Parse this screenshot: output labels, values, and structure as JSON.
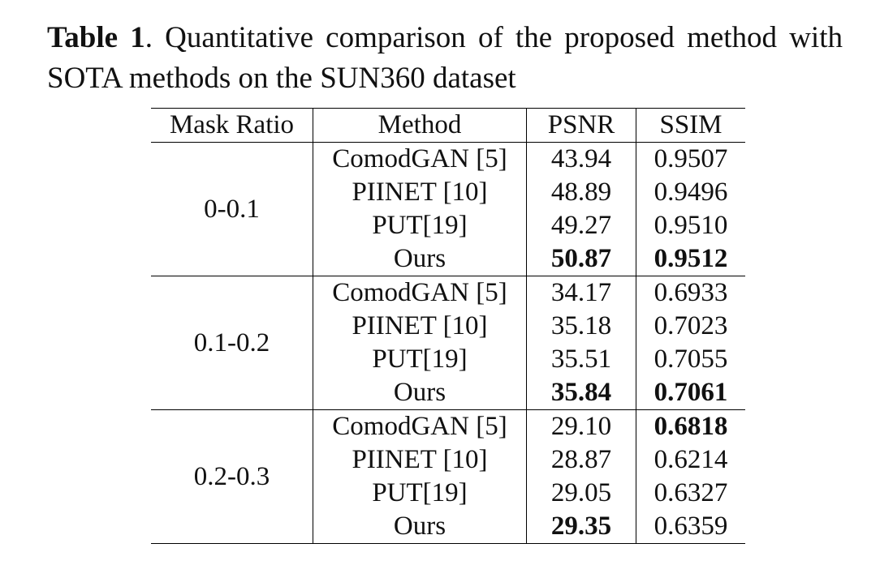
{
  "caption": {
    "label": "Table 1",
    "text": ".  Quantitative comparison of the proposed method with SOTA methods on the SUN360 dataset"
  },
  "table": {
    "headers": [
      "Mask Ratio",
      "Method",
      "PSNR",
      "SSIM"
    ],
    "groups": [
      {
        "mask_ratio": "0-0.1",
        "rows": [
          {
            "method": "ComodGAN [5]",
            "psnr": "43.94",
            "ssim": "0.9507",
            "psnr_bold": false,
            "ssim_bold": false
          },
          {
            "method": "PIINET [10]",
            "psnr": "48.89",
            "ssim": "0.9496",
            "psnr_bold": false,
            "ssim_bold": false
          },
          {
            "method": "PUT[19]",
            "psnr": "49.27",
            "ssim": "0.9510",
            "psnr_bold": false,
            "ssim_bold": false
          },
          {
            "method": "Ours",
            "psnr": "50.87",
            "ssim": "0.9512",
            "psnr_bold": true,
            "ssim_bold": true
          }
        ]
      },
      {
        "mask_ratio": "0.1-0.2",
        "rows": [
          {
            "method": "ComodGAN [5]",
            "psnr": "34.17",
            "ssim": "0.6933",
            "psnr_bold": false,
            "ssim_bold": false
          },
          {
            "method": "PIINET [10]",
            "psnr": "35.18",
            "ssim": "0.7023",
            "psnr_bold": false,
            "ssim_bold": false
          },
          {
            "method": "PUT[19]",
            "psnr": "35.51",
            "ssim": "0.7055",
            "psnr_bold": false,
            "ssim_bold": false
          },
          {
            "method": "Ours",
            "psnr": "35.84",
            "ssim": "0.7061",
            "psnr_bold": true,
            "ssim_bold": true
          }
        ]
      },
      {
        "mask_ratio": "0.2-0.3",
        "rows": [
          {
            "method": "ComodGAN [5]",
            "psnr": "29.10",
            "ssim": "0.6818",
            "psnr_bold": false,
            "ssim_bold": true
          },
          {
            "method": "PIINET [10]",
            "psnr": "28.87",
            "ssim": "0.6214",
            "psnr_bold": false,
            "ssim_bold": false
          },
          {
            "method": "PUT[19]",
            "psnr": "29.05",
            "ssim": "0.6327",
            "psnr_bold": false,
            "ssim_bold": false
          },
          {
            "method": "Ours",
            "psnr": "29.35",
            "ssim": "0.6359",
            "psnr_bold": true,
            "ssim_bold": false
          }
        ]
      }
    ]
  }
}
